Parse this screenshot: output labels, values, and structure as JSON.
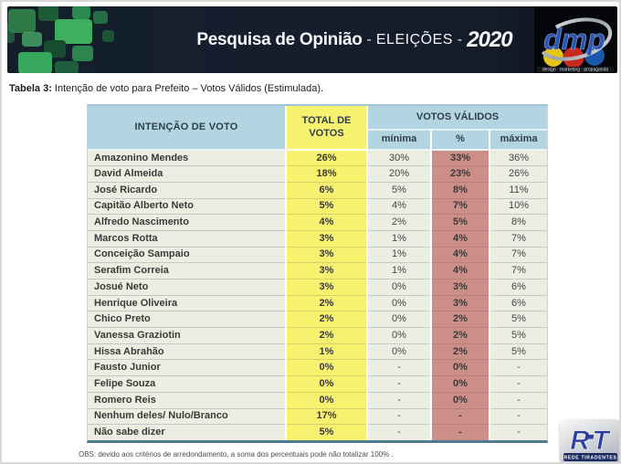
{
  "header": {
    "title_main": "Pesquisa de Opinião",
    "sep": "-",
    "title_mid": "ELEIÇÕES",
    "title_year": "2020",
    "dmp_logo": {
      "text": "dmp",
      "tagline": "design · marketing · propaganda"
    }
  },
  "caption": {
    "label": "Tabela 3:",
    "text": " Intenção de voto para Prefeito – Votos Válidos (Estimulada)."
  },
  "table": {
    "headers": {
      "intention": "INTENÇÃO DE VOTO",
      "total_line1": "TOTAL DE",
      "total_line2": "VOTOS",
      "valid": "VOTOS VÁLIDOS",
      "min": "mínima",
      "pct": "%",
      "max": "máxima"
    },
    "rows": [
      {
        "name": "Amazonino Mendes",
        "total": "26%",
        "min": "30%",
        "pct": "33%",
        "max": "36%"
      },
      {
        "name": "David Almeida",
        "total": "18%",
        "min": "20%",
        "pct": "23%",
        "max": "26%"
      },
      {
        "name": "José Ricardo",
        "total": "6%",
        "min": "5%",
        "pct": "8%",
        "max": "11%"
      },
      {
        "name": "Capitão Alberto Neto",
        "total": "5%",
        "min": "4%",
        "pct": "7%",
        "max": "10%"
      },
      {
        "name": "Alfredo Nascimento",
        "total": "4%",
        "min": "2%",
        "pct": "5%",
        "max": "8%"
      },
      {
        "name": "Marcos Rotta",
        "total": "3%",
        "min": "1%",
        "pct": "4%",
        "max": "7%"
      },
      {
        "name": "Conceição Sampaio",
        "total": "3%",
        "min": "1%",
        "pct": "4%",
        "max": "7%"
      },
      {
        "name": "Serafim Correia",
        "total": "3%",
        "min": "1%",
        "pct": "4%",
        "max": "7%"
      },
      {
        "name": "Josué Neto",
        "total": "3%",
        "min": "0%",
        "pct": "3%",
        "max": "6%"
      },
      {
        "name": "Henrique Oliveira",
        "total": "2%",
        "min": "0%",
        "pct": "3%",
        "max": "6%"
      },
      {
        "name": "Chico Preto",
        "total": "2%",
        "min": "0%",
        "pct": "2%",
        "max": "5%"
      },
      {
        "name": "Vanessa Graziotin",
        "total": "2%",
        "min": "0%",
        "pct": "2%",
        "max": "5%"
      },
      {
        "name": "Hissa Abrahão",
        "total": "1%",
        "min": "0%",
        "pct": "2%",
        "max": "5%"
      },
      {
        "name": "Fausto Junior",
        "total": "0%",
        "min": "-",
        "pct": "0%",
        "max": "-"
      },
      {
        "name": "Felipe Souza",
        "total": "0%",
        "min": "-",
        "pct": "0%",
        "max": "-"
      },
      {
        "name": "Romero Reis",
        "total": "0%",
        "min": "-",
        "pct": "0%",
        "max": "-"
      },
      {
        "name": "Nenhum deles/ Nulo/Branco",
        "total": "17%",
        "min": "-",
        "pct": "-",
        "max": "-"
      },
      {
        "name": "Não sabe dizer",
        "total": "5%",
        "min": "-",
        "pct": "-",
        "max": "-"
      }
    ]
  },
  "footer": {
    "note": "OBS: devido aos critérios de arredondamento, a soma dos percentuais pode não totalizar 100% ."
  },
  "rt_logo": {
    "text": "RT",
    "subtext": "REDE TIRADENTES"
  },
  "colors": {
    "banner_bg": "#141b29",
    "header_blue": "#b3d5e1",
    "total_yellow": "#f7f170",
    "pct_pink": "#cc8f88",
    "row_bg": "#ebeee1",
    "table_bottom_border": "#4f7b8f",
    "green_accent": "#3fae5e",
    "dmp_blue": "#2d55b0"
  }
}
